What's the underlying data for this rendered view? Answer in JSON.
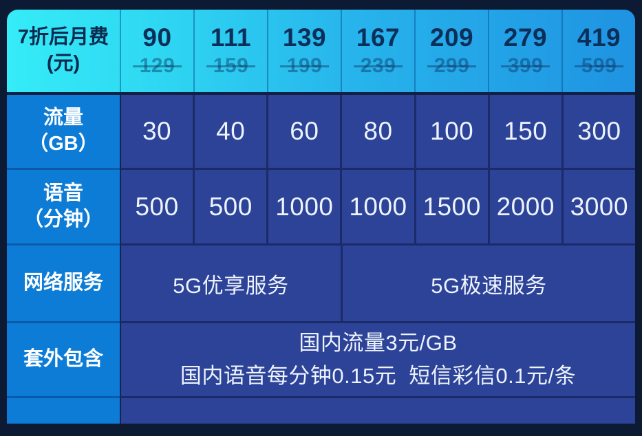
{
  "colors": {
    "page_background": "#0c1a33",
    "header_gradient_left": "#35ecf7",
    "header_gradient_right": "#1f93e2",
    "header_text": "#0c2f5a",
    "original_price_text": "#4a7ba8",
    "label_column_background": "#0d7cd6",
    "data_cell_background": "#2d4398",
    "data_text": "#edf3fd"
  },
  "chart_data": {
    "type": "table",
    "header_row": {
      "label": [
        "7折后月费",
        "(元)"
      ],
      "discounted_monthly_fee": [
        "90",
        "111",
        "139",
        "167",
        "209",
        "279",
        "419"
      ],
      "original_monthly_fee": [
        "129",
        "159",
        "199",
        "239",
        "299",
        "399",
        "599"
      ]
    },
    "rows": [
      {
        "label": [
          "流量",
          "（GB）"
        ],
        "values": [
          "30",
          "40",
          "60",
          "80",
          "100",
          "150",
          "300"
        ]
      },
      {
        "label": [
          "语音",
          "（分钟）"
        ],
        "values": [
          "500",
          "500",
          "1000",
          "1000",
          "1500",
          "2000",
          "3000"
        ]
      },
      {
        "label": [
          "网络服务"
        ],
        "cells": [
          {
            "text": "5G优享服务",
            "colspan": 3
          },
          {
            "text": "5G极速服务",
            "colspan": 4
          }
        ]
      },
      {
        "label": [
          "套外包含"
        ],
        "colspan": 7,
        "lines": [
          "国内流量3元/GB",
          "国内语音每分钟0.15元  短信彩信0.1元/条"
        ]
      }
    ]
  }
}
